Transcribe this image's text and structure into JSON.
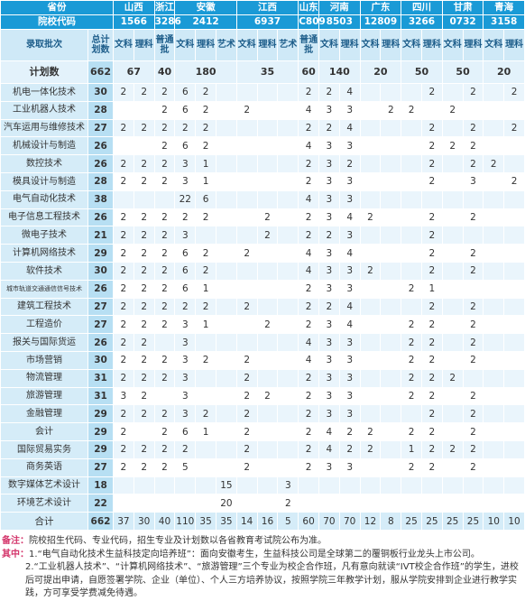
{
  "header": {
    "row1": [
      "省份",
      "山西",
      "浙江",
      "安徽",
      "江西",
      "山东",
      "河南",
      "广东",
      "四川",
      "甘肃",
      "青海"
    ],
    "row2": [
      "院校代码",
      "1566",
      "3286",
      "2412",
      "6937",
      "C809",
      "8503",
      "12809",
      "3266",
      "0732",
      "3158"
    ],
    "row3": [
      "录取批次",
      "总计划数",
      "文科",
      "理科",
      "普通批",
      "文科",
      "理科",
      "艺术",
      "文科",
      "理科",
      "艺术",
      "普通批",
      "文科",
      "理科",
      "文科",
      "理科",
      "文科",
      "理科",
      "文科",
      "理科",
      "文科",
      "理科"
    ]
  },
  "plan_row": {
    "label": "计划数",
    "values": [
      662,
      67,
      40,
      180,
      35,
      60,
      140,
      20,
      50,
      50,
      20
    ]
  },
  "rows": [
    {
      "name": "机电一体化技术",
      "total": 30,
      "values": [
        2,
        2,
        2,
        6,
        2,
        null,
        null,
        null,
        null,
        2,
        2,
        4,
        null,
        null,
        null,
        2,
        null,
        2,
        null,
        2
      ]
    },
    {
      "name": "工业机器人技术",
      "total": 28,
      "values": [
        null,
        null,
        2,
        6,
        2,
        null,
        2,
        null,
        null,
        4,
        3,
        3,
        null,
        2,
        2,
        null,
        2,
        null,
        null,
        null
      ]
    },
    {
      "name": "汽车运用与维修技术",
      "total": 27,
      "values": [
        2,
        2,
        2,
        2,
        2,
        null,
        null,
        null,
        null,
        2,
        2,
        4,
        null,
        null,
        null,
        2,
        null,
        2,
        null,
        2
      ]
    },
    {
      "name": "机械设计与制造",
      "total": 26,
      "values": [
        null,
        null,
        2,
        6,
        2,
        null,
        null,
        null,
        null,
        4,
        3,
        3,
        null,
        null,
        null,
        2,
        2,
        2,
        null,
        null
      ]
    },
    {
      "name": "数控技术",
      "total": 26,
      "values": [
        2,
        2,
        2,
        3,
        1,
        null,
        null,
        null,
        null,
        2,
        3,
        2,
        null,
        null,
        null,
        2,
        null,
        2,
        2,
        null
      ]
    },
    {
      "name": "模具设计与制造",
      "total": 28,
      "values": [
        2,
        2,
        2,
        3,
        1,
        null,
        null,
        null,
        null,
        2,
        3,
        3,
        null,
        null,
        null,
        2,
        null,
        3,
        null,
        2
      ]
    },
    {
      "name": "电气自动化技术",
      "total": 38,
      "values": [
        null,
        null,
        null,
        22,
        6,
        null,
        null,
        null,
        null,
        4,
        3,
        3,
        null,
        null,
        null,
        null,
        null,
        null,
        null,
        null
      ]
    },
    {
      "name": "电子信息工程技术",
      "total": 26,
      "values": [
        2,
        2,
        2,
        2,
        2,
        null,
        null,
        2,
        null,
        2,
        3,
        4,
        2,
        null,
        null,
        2,
        null,
        2,
        null,
        null
      ]
    },
    {
      "name": "微电子技术",
      "total": 21,
      "values": [
        2,
        2,
        2,
        3,
        null,
        null,
        null,
        2,
        null,
        2,
        2,
        3,
        null,
        null,
        null,
        2,
        null,
        null,
        null,
        null
      ]
    },
    {
      "name": "计算机网络技术",
      "total": 29,
      "values": [
        2,
        2,
        2,
        6,
        2,
        null,
        2,
        null,
        null,
        4,
        3,
        4,
        null,
        null,
        null,
        2,
        null,
        2,
        null,
        null
      ]
    },
    {
      "name": "软件技术",
      "total": 30,
      "values": [
        2,
        2,
        2,
        6,
        2,
        null,
        null,
        null,
        null,
        4,
        3,
        3,
        2,
        null,
        null,
        2,
        null,
        2,
        null,
        null
      ]
    },
    {
      "name": "城市轨道交通通信信号技术",
      "total": 26,
      "values": [
        2,
        2,
        2,
        6,
        1,
        null,
        null,
        null,
        null,
        2,
        3,
        3,
        null,
        null,
        2,
        1,
        null,
        null,
        null,
        null
      ]
    },
    {
      "name": "建筑工程技术",
      "total": 27,
      "values": [
        2,
        2,
        2,
        2,
        2,
        null,
        2,
        null,
        null,
        2,
        2,
        4,
        null,
        null,
        null,
        2,
        null,
        2,
        null,
        null
      ]
    },
    {
      "name": "工程造价",
      "total": 27,
      "values": [
        2,
        2,
        2,
        3,
        1,
        null,
        null,
        2,
        null,
        2,
        3,
        4,
        null,
        null,
        2,
        2,
        null,
        2,
        null,
        null
      ]
    },
    {
      "name": "报关与国际货运",
      "total": 26,
      "values": [
        2,
        2,
        null,
        3,
        null,
        null,
        null,
        null,
        null,
        4,
        3,
        3,
        null,
        null,
        2,
        2,
        null,
        2,
        null,
        null
      ]
    },
    {
      "name": "市场营销",
      "total": 30,
      "values": [
        2,
        2,
        2,
        3,
        2,
        null,
        2,
        null,
        null,
        4,
        3,
        3,
        null,
        null,
        2,
        2,
        null,
        2,
        null,
        null
      ]
    },
    {
      "name": "物流管理",
      "total": 31,
      "values": [
        2,
        2,
        2,
        3,
        null,
        null,
        2,
        null,
        null,
        2,
        3,
        3,
        null,
        null,
        2,
        2,
        2,
        null,
        null,
        null
      ]
    },
    {
      "name": "旅游管理",
      "total": 31,
      "values": [
        3,
        2,
        null,
        3,
        null,
        null,
        2,
        2,
        null,
        2,
        3,
        3,
        null,
        null,
        2,
        2,
        null,
        2,
        null,
        null
      ]
    },
    {
      "name": "金融管理",
      "total": 29,
      "values": [
        2,
        2,
        2,
        3,
        2,
        null,
        2,
        null,
        null,
        2,
        3,
        3,
        null,
        null,
        null,
        2,
        null,
        2,
        null,
        null
      ]
    },
    {
      "name": "会计",
      "total": 29,
      "values": [
        2,
        null,
        2,
        6,
        1,
        null,
        2,
        null,
        null,
        2,
        4,
        2,
        2,
        null,
        2,
        2,
        null,
        2,
        null,
        null
      ]
    },
    {
      "name": "国际贸易实务",
      "total": 29,
      "values": [
        2,
        2,
        2,
        2,
        null,
        null,
        2,
        null,
        null,
        2,
        4,
        2,
        2,
        null,
        1,
        2,
        2,
        2,
        null,
        null
      ]
    },
    {
      "name": "商务英语",
      "total": 27,
      "values": [
        2,
        2,
        2,
        5,
        null,
        null,
        2,
        null,
        null,
        2,
        3,
        3,
        null,
        null,
        2,
        2,
        null,
        2,
        null,
        null
      ]
    },
    {
      "name": "数字媒体艺术设计",
      "total": 18,
      "values": [
        null,
        null,
        null,
        null,
        null,
        15,
        null,
        null,
        3,
        null,
        null,
        null,
        null,
        null,
        null,
        null,
        null,
        null,
        null,
        null
      ]
    },
    {
      "name": "环境艺术设计",
      "total": 22,
      "values": [
        null,
        null,
        null,
        null,
        null,
        20,
        null,
        null,
        2,
        null,
        null,
        null,
        null,
        null,
        null,
        null,
        null,
        null,
        null,
        null
      ]
    }
  ],
  "sum_row": {
    "label": "合计",
    "total": 662,
    "values": [
      37,
      30,
      40,
      110,
      35,
      35,
      14,
      16,
      5,
      60,
      70,
      70,
      12,
      8,
      25,
      25,
      25,
      25,
      10,
      10
    ]
  },
  "notes": {
    "label": "备注：",
    "text": "院校招生代码、专业代码，招生专业及计划数以各省教育考试院公布为准。",
    "sub_label": "其中：",
    "items": [
      "1.“电气自动化技术生益科技定向培养班”：面向安徽考生，生益科技公司是全球第二的覆铜板行业龙头上市公司。",
      "2.“工业机器人技术”、“计算机网络技术”、“旅游管理”三个专业为校企合作班，凡有意向就读“IVT校企合作班”的学生，进校后可提出申请，自愿签署学院、企业（单位）、个人三方培养协议，按照学院三年教学计划，服从学院安排到企业进行教学实践，方可享受学费减免待遇。"
    ]
  }
}
